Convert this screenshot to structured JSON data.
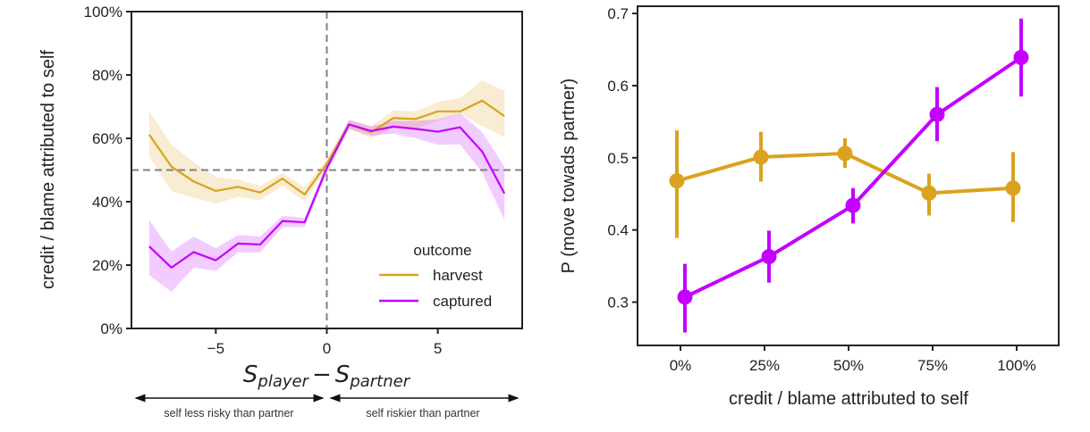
{
  "colors": {
    "harvest": "#DAA21F",
    "captured": "#C300FF",
    "axis": "#222222",
    "ref_line": "#808080"
  },
  "chart_data": [
    {
      "type": "line",
      "xlabel": {
        "S": "S",
        "player": "player",
        "minus": "−",
        "partner": "partner"
      },
      "ylabel": "credit / blame attributed to self",
      "xlim": [
        -8.8,
        8.8
      ],
      "ylim": [
        0,
        100
      ],
      "xticks": [
        {
          "value": -5,
          "label": "−5"
        },
        {
          "value": 0,
          "label": "0"
        },
        {
          "value": 5,
          "label": "5"
        }
      ],
      "yticks": [
        {
          "value": 0,
          "label": "0%"
        },
        {
          "value": 20,
          "label": "20%"
        },
        {
          "value": 40,
          "label": "40%"
        },
        {
          "value": 60,
          "label": "60%"
        },
        {
          "value": 80,
          "label": "80%"
        },
        {
          "value": 100,
          "label": "100%"
        }
      ],
      "reference_lines": {
        "horizontal": 50,
        "vertical": 0
      },
      "legend": {
        "title": "outcome",
        "placement": "lower-right"
      },
      "x": [
        -8,
        -7,
        -6,
        -5,
        -4,
        -3,
        -2,
        -1,
        0,
        1,
        2,
        3,
        4,
        5,
        6,
        7,
        8
      ],
      "series": [
        {
          "name": "harvest",
          "values": [
            61.2,
            51.1,
            46.4,
            43.4,
            44.7,
            42.9,
            47.3,
            42.3,
            52.0,
            64.4,
            62.0,
            66.4,
            66.1,
            68.5,
            68.5,
            71.9,
            67.0
          ],
          "upper": [
            68.5,
            58.1,
            52.5,
            47.8,
            47.0,
            45.0,
            49.0,
            44.5,
            53.5,
            65.8,
            63.8,
            68.8,
            68.5,
            71.5,
            72.7,
            78.3,
            75.0
          ],
          "lower": [
            54.4,
            43.3,
            41.2,
            39.4,
            41.5,
            40.5,
            45.0,
            40.0,
            50.5,
            63.0,
            60.0,
            63.5,
            63.0,
            65.5,
            68.0,
            63.8,
            60.5
          ]
        },
        {
          "name": "captured",
          "values": [
            25.9,
            19.2,
            24.1,
            21.5,
            26.8,
            26.5,
            33.9,
            33.5,
            50.6,
            64.4,
            62.3,
            63.7,
            63.0,
            62.1,
            63.5,
            55.8,
            42.6
          ],
          "upper": [
            34.2,
            24.3,
            29.0,
            25.3,
            29.5,
            29.0,
            35.5,
            35.0,
            52.0,
            65.8,
            63.8,
            65.5,
            65.5,
            66.0,
            68.0,
            61.9,
            51.1
          ],
          "lower": [
            16.8,
            11.6,
            19.2,
            18.2,
            24.0,
            24.0,
            32.0,
            32.0,
            49.0,
            63.0,
            60.8,
            61.5,
            60.0,
            58.0,
            58.1,
            49.2,
            34.2
          ]
        }
      ],
      "annotations": {
        "left_arrow": "self less risky than partner",
        "right_arrow": "self riskier than partner"
      }
    },
    {
      "type": "line",
      "title": "",
      "xlabel": "credit / blame attributed to self",
      "ylabel": "P (move towads partner)",
      "categories": [
        "0%",
        "25%",
        "50%",
        "75%",
        "100%"
      ],
      "ylim": [
        0.24,
        0.71
      ],
      "yticks": [
        {
          "value": 0.3,
          "label": "0.3"
        },
        {
          "value": 0.4,
          "label": "0.4"
        },
        {
          "value": 0.5,
          "label": "0.5"
        },
        {
          "value": 0.6,
          "label": "0.6"
        },
        {
          "value": 0.7,
          "label": "0.7"
        }
      ],
      "series": [
        {
          "name": "harvest",
          "values": [
            0.468,
            0.501,
            0.506,
            0.451,
            0.458
          ],
          "ci_upper": [
            0.538,
            0.536,
            0.527,
            0.478,
            0.508
          ],
          "ci_lower": [
            0.389,
            0.467,
            0.486,
            0.42,
            0.411
          ]
        },
        {
          "name": "captured",
          "values": [
            0.307,
            0.363,
            0.434,
            0.56,
            0.639
          ],
          "ci_upper": [
            0.353,
            0.399,
            0.458,
            0.598,
            0.693
          ],
          "ci_lower": [
            0.258,
            0.327,
            0.409,
            0.523,
            0.585
          ]
        }
      ]
    }
  ]
}
